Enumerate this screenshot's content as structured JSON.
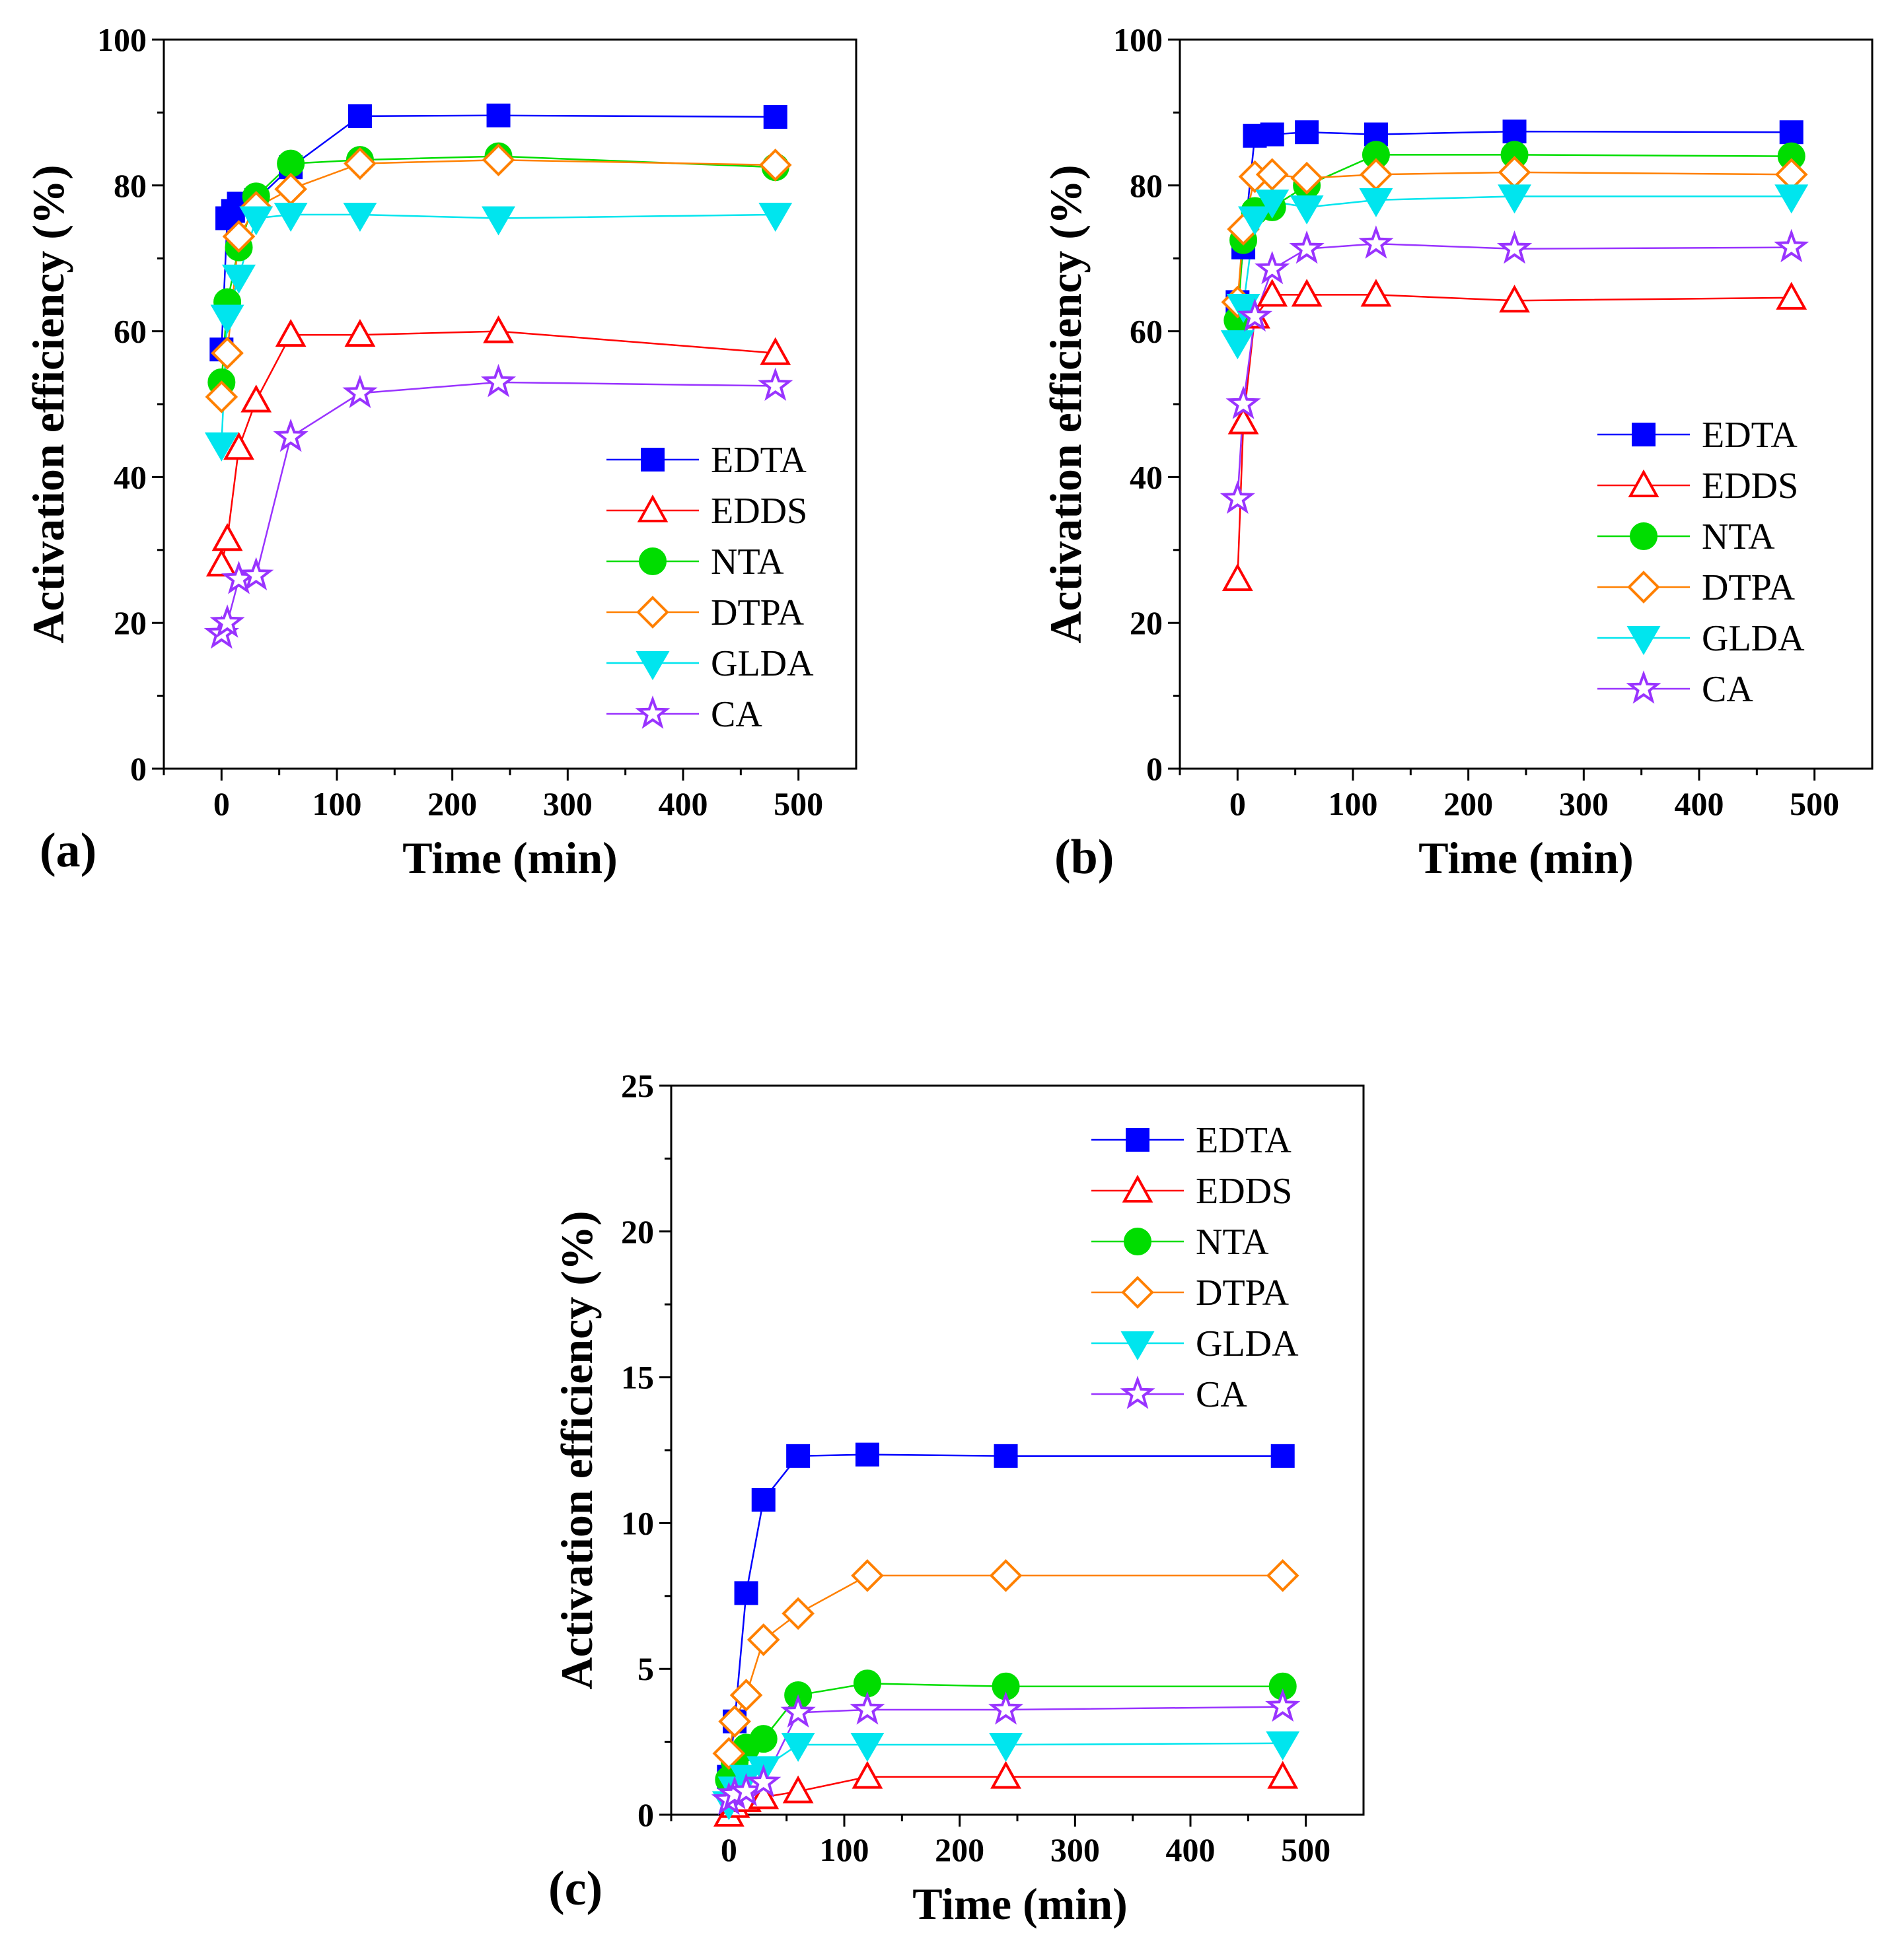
{
  "chart_data": [
    {
      "type": "line",
      "panel_label": "(a)",
      "xlabel": "Time (min)",
      "ylabel": "Activation efficiency (%)",
      "xlim": [
        -50,
        550
      ],
      "ylim": [
        0,
        100
      ],
      "xticks": [
        "0",
        "100",
        "200",
        "300",
        "400",
        "500"
      ],
      "yticks": [
        "0",
        "20",
        "40",
        "60",
        "80",
        "100"
      ],
      "legend_position": "lower-right",
      "series": [
        {
          "name": "EDTA",
          "color": "#0000ff",
          "marker": "square",
          "filled": true,
          "x": [
            0,
            5,
            10,
            15,
            30,
            60,
            120,
            240,
            480
          ],
          "y": [
            57.5,
            75.5,
            76.5,
            77.5,
            78,
            82.5,
            89.5,
            89.6,
            89.4
          ]
        },
        {
          "name": "EDDS",
          "color": "#ff0000",
          "marker": "triangle-up",
          "filled": false,
          "x": [
            0,
            5,
            15,
            30,
            60,
            120,
            240,
            480
          ],
          "y": [
            28,
            31.5,
            44,
            50.5,
            59.5,
            59.5,
            60,
            57
          ]
        },
        {
          "name": "NTA",
          "color": "#00dd00",
          "marker": "circle",
          "filled": true,
          "x": [
            0,
            5,
            15,
            30,
            60,
            120,
            240,
            480
          ],
          "y": [
            53,
            64,
            71.5,
            78.5,
            83,
            83.5,
            84,
            82.5
          ]
        },
        {
          "name": "DTPA",
          "color": "#ff8000",
          "marker": "diamond",
          "filled": false,
          "x": [
            0,
            5,
            15,
            30,
            60,
            120,
            240,
            480
          ],
          "y": [
            51,
            57,
            73,
            77,
            79.5,
            83,
            83.5,
            82.8
          ]
        },
        {
          "name": "GLDA",
          "color": "#00e5ee",
          "marker": "triangle-down",
          "filled": true,
          "x": [
            0,
            5,
            15,
            30,
            60,
            120,
            240,
            480
          ],
          "y": [
            44.5,
            62,
            67.5,
            75.5,
            76,
            76,
            75.5,
            76
          ]
        },
        {
          "name": "CA",
          "color": "#9933ff",
          "marker": "star",
          "filled": false,
          "x": [
            0,
            5,
            15,
            30,
            60,
            120,
            240,
            480
          ],
          "y": [
            18.5,
            20,
            26,
            26.5,
            45.5,
            51.5,
            53,
            52.5
          ]
        }
      ]
    },
    {
      "type": "line",
      "panel_label": "(b)",
      "xlabel": "Time (min)",
      "ylabel": "Activation efficiency (%)",
      "xlim": [
        -50,
        550
      ],
      "ylim": [
        0,
        100
      ],
      "xticks": [
        "0",
        "100",
        "200",
        "300",
        "400",
        "500"
      ],
      "yticks": [
        "0",
        "20",
        "40",
        "60",
        "80",
        "100"
      ],
      "legend_position": "right",
      "series": [
        {
          "name": "EDTA",
          "color": "#0000ff",
          "marker": "square",
          "filled": true,
          "x": [
            0,
            5,
            15,
            30,
            60,
            120,
            240,
            480
          ],
          "y": [
            64,
            71.5,
            86.8,
            87,
            87.3,
            87,
            87.4,
            87.3
          ]
        },
        {
          "name": "EDDS",
          "color": "#ff0000",
          "marker": "triangle-up",
          "filled": false,
          "x": [
            0,
            5,
            15,
            30,
            60,
            120,
            240,
            480
          ],
          "y": [
            26,
            47.5,
            62,
            65,
            65,
            65,
            64.2,
            64.6
          ]
        },
        {
          "name": "NTA",
          "color": "#00dd00",
          "marker": "circle",
          "filled": true,
          "x": [
            0,
            5,
            15,
            30,
            60,
            120,
            240,
            480
          ],
          "y": [
            61.5,
            72.5,
            76.5,
            77,
            80,
            84.2,
            84.2,
            84
          ]
        },
        {
          "name": "DTPA",
          "color": "#ff8000",
          "marker": "diamond",
          "filled": false,
          "x": [
            0,
            5,
            15,
            30,
            60,
            120,
            240,
            480
          ],
          "y": [
            64,
            74,
            81.2,
            81.5,
            81,
            81.5,
            81.8,
            81.5
          ]
        },
        {
          "name": "GLDA",
          "color": "#00e5ee",
          "marker": "triangle-down",
          "filled": true,
          "x": [
            0,
            5,
            15,
            30,
            60,
            120,
            240,
            480
          ],
          "y": [
            58.5,
            63.5,
            75.5,
            77.8,
            77,
            78,
            78.5,
            78.5
          ]
        },
        {
          "name": "CA",
          "color": "#9933ff",
          "marker": "star",
          "filled": false,
          "x": [
            0,
            5,
            15,
            30,
            60,
            120,
            240,
            480
          ],
          "y": [
            37,
            50,
            62,
            68.5,
            71.3,
            72,
            71.3,
            71.5
          ]
        }
      ]
    },
    {
      "type": "line",
      "panel_label": "(c)",
      "xlabel": "Time (min)",
      "ylabel": "Activation efficiency (%)",
      "xlim": [
        -50,
        550
      ],
      "ylim": [
        0,
        25
      ],
      "xticks": [
        "0",
        "100",
        "200",
        "300",
        "400",
        "500"
      ],
      "yticks": [
        "0",
        "5",
        "10",
        "15",
        "20",
        "25"
      ],
      "legend_position": "top-right",
      "series": [
        {
          "name": "EDTA",
          "color": "#0000ff",
          "marker": "square",
          "filled": true,
          "x": [
            0,
            5,
            15,
            30,
            60,
            120,
            240,
            480
          ],
          "y": [
            1.3,
            3.2,
            7.6,
            10.8,
            12.3,
            12.35,
            12.3,
            12.3
          ]
        },
        {
          "name": "EDDS",
          "color": "#ff0000",
          "marker": "triangle-up",
          "filled": false,
          "x": [
            0,
            5,
            15,
            30,
            60,
            120,
            240,
            480
          ],
          "y": [
            0,
            0.3,
            0.5,
            0.6,
            0.8,
            1.3,
            1.3,
            1.3
          ]
        },
        {
          "name": "NTA",
          "color": "#00dd00",
          "marker": "circle",
          "filled": true,
          "x": [
            0,
            5,
            15,
            30,
            60,
            120,
            240,
            480
          ],
          "y": [
            1.2,
            1.8,
            2.3,
            2.6,
            4.1,
            4.5,
            4.4,
            4.4
          ]
        },
        {
          "name": "DTPA",
          "color": "#ff8000",
          "marker": "diamond",
          "filled": false,
          "x": [
            0,
            5,
            15,
            30,
            60,
            120,
            240,
            480
          ],
          "y": [
            2.1,
            3.2,
            4.1,
            6,
            6.9,
            8.2,
            8.2,
            8.2
          ]
        },
        {
          "name": "GLDA",
          "color": "#00e5ee",
          "marker": "triangle-down",
          "filled": true,
          "x": [
            0,
            5,
            15,
            30,
            60,
            120,
            240,
            480
          ],
          "y": [
            0.4,
            0.9,
            1.3,
            1.6,
            2.4,
            2.4,
            2.4,
            2.45
          ]
        },
        {
          "name": "CA",
          "color": "#9933ff",
          "marker": "star",
          "filled": false,
          "x": [
            0,
            5,
            15,
            30,
            60,
            120,
            240,
            480
          ],
          "y": [
            0.5,
            0.7,
            0.8,
            1.1,
            3.5,
            3.6,
            3.6,
            3.7
          ]
        }
      ]
    }
  ]
}
